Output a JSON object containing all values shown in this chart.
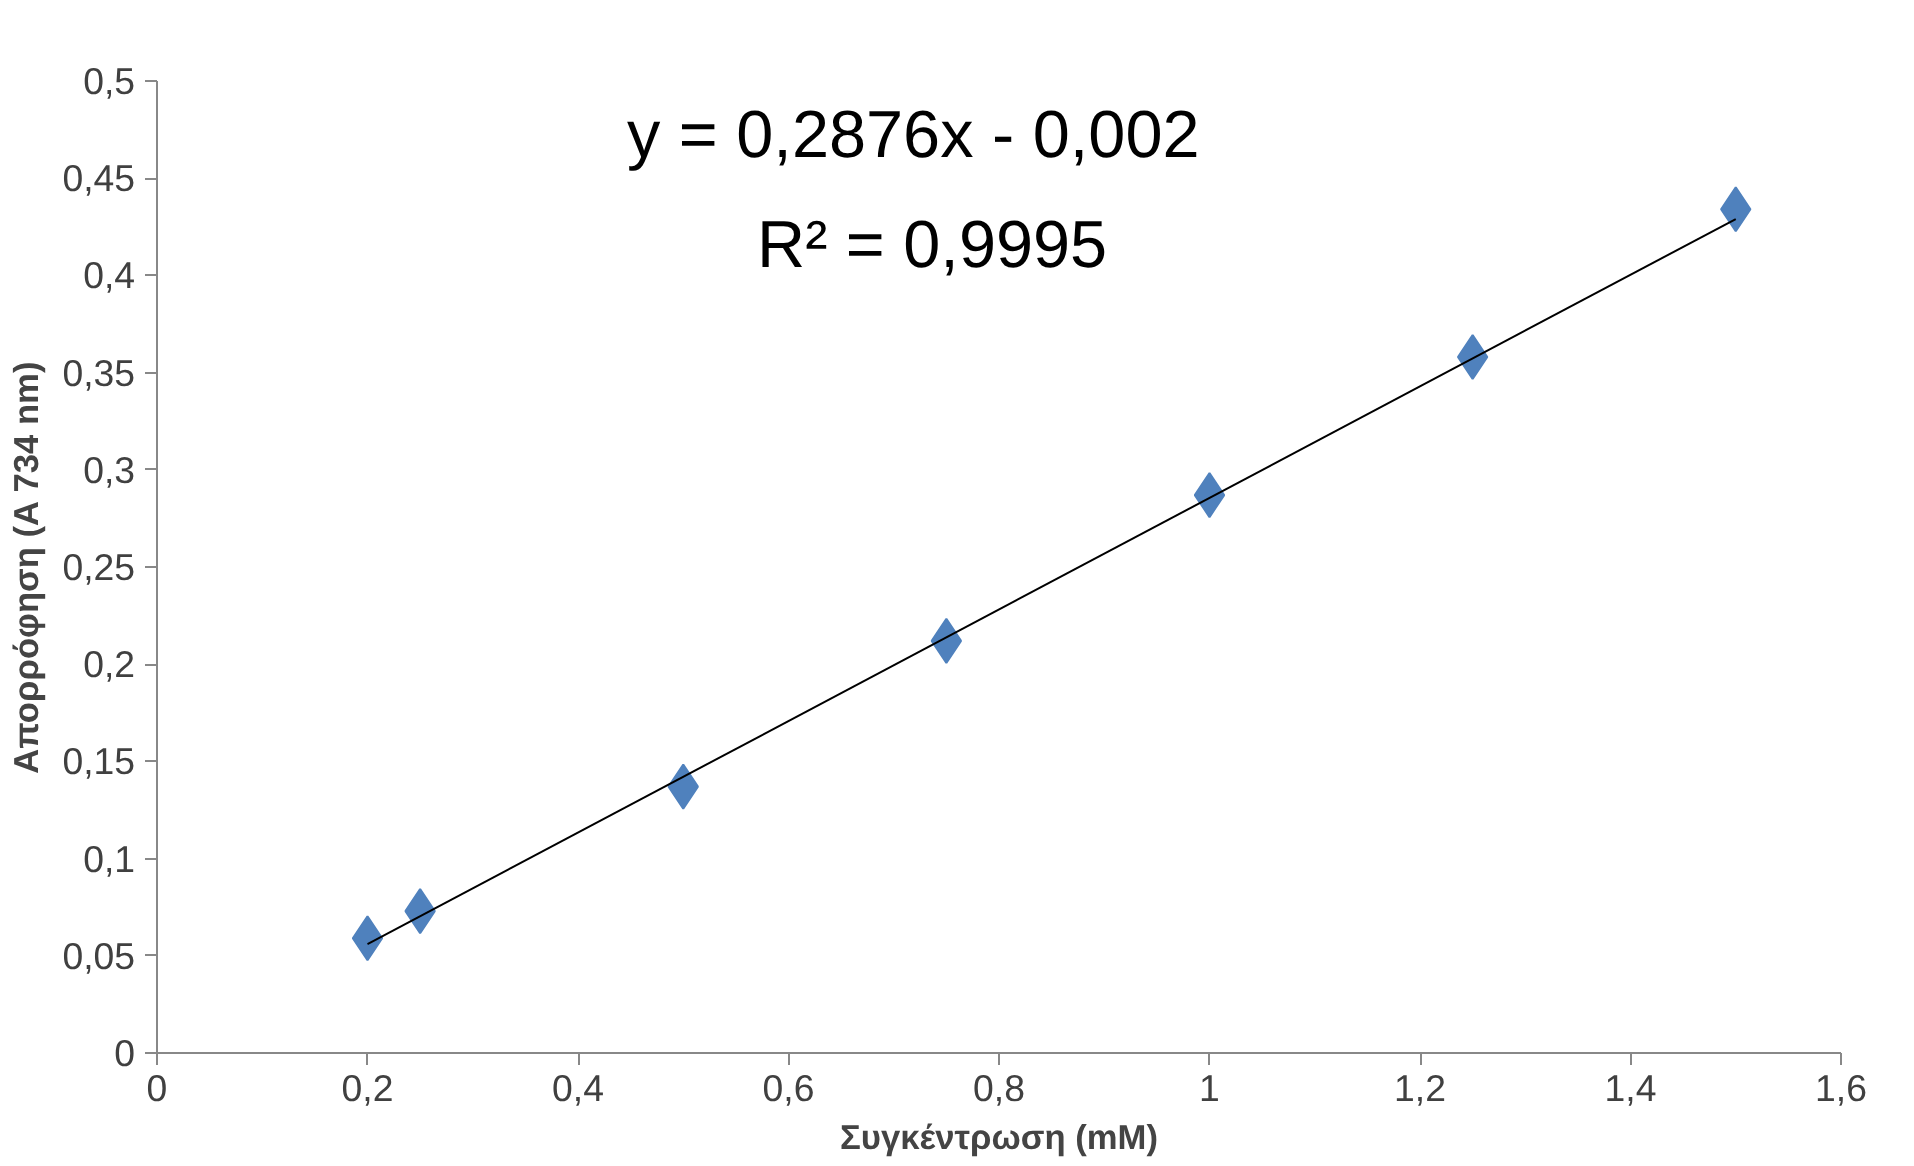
{
  "chart_data": {
    "type": "scatter",
    "xlabel": "Συγκέντρωση (mM)",
    "ylabel": "Απορρόφηση (A 734 nm)",
    "annotations": [
      "y = 0,2876x - 0,002",
      "R² = 0,9995"
    ],
    "series": [
      {
        "color": "#4f81bd",
        "marker": "diamond",
        "x": [
          0.2,
          0.25,
          0.5,
          0.75,
          1,
          1.25,
          1.5
        ],
        "values": [
          0.059,
          0.073,
          0.137,
          0.212,
          0.287,
          0.358,
          0.434
        ]
      },
      {
        "type": "line",
        "color": "#000000",
        "line_style": "solid",
        "x": [
          0.2,
          1.5
        ],
        "values": [
          0.056,
          0.429
        ]
      }
    ],
    "xlim": [
      0,
      1.6
    ],
    "ylim": [
      0,
      0.5
    ],
    "xticks": [
      0,
      {
        "value": 0.2,
        "label": "0,2"
      },
      {
        "value": 0.4,
        "label": "0,4"
      },
      {
        "value": 0.6,
        "label": "0,6"
      },
      {
        "value": 0.8,
        "label": "0,8"
      },
      1,
      {
        "value": 1.2,
        "label": "1,2"
      },
      {
        "value": 1.4,
        "label": "1,4"
      },
      {
        "value": 1.6,
        "label": "1,6"
      }
    ],
    "yticks": [
      0,
      {
        "value": 0.05,
        "label": "0,05"
      },
      {
        "value": 0.1,
        "label": "0,1"
      },
      {
        "value": 0.15,
        "label": "0,15"
      },
      {
        "value": 0.2,
        "label": "0,2"
      },
      {
        "value": 0.25,
        "label": "0,25"
      },
      {
        "value": 0.3,
        "label": "0,3"
      },
      {
        "value": 0.35,
        "label": "0,35"
      },
      {
        "value": 0.4,
        "label": "0,4"
      },
      {
        "value": 0.45,
        "label": "0,45"
      },
      {
        "value": 0.5,
        "label": "0,5"
      }
    ],
    "grid": false
  }
}
